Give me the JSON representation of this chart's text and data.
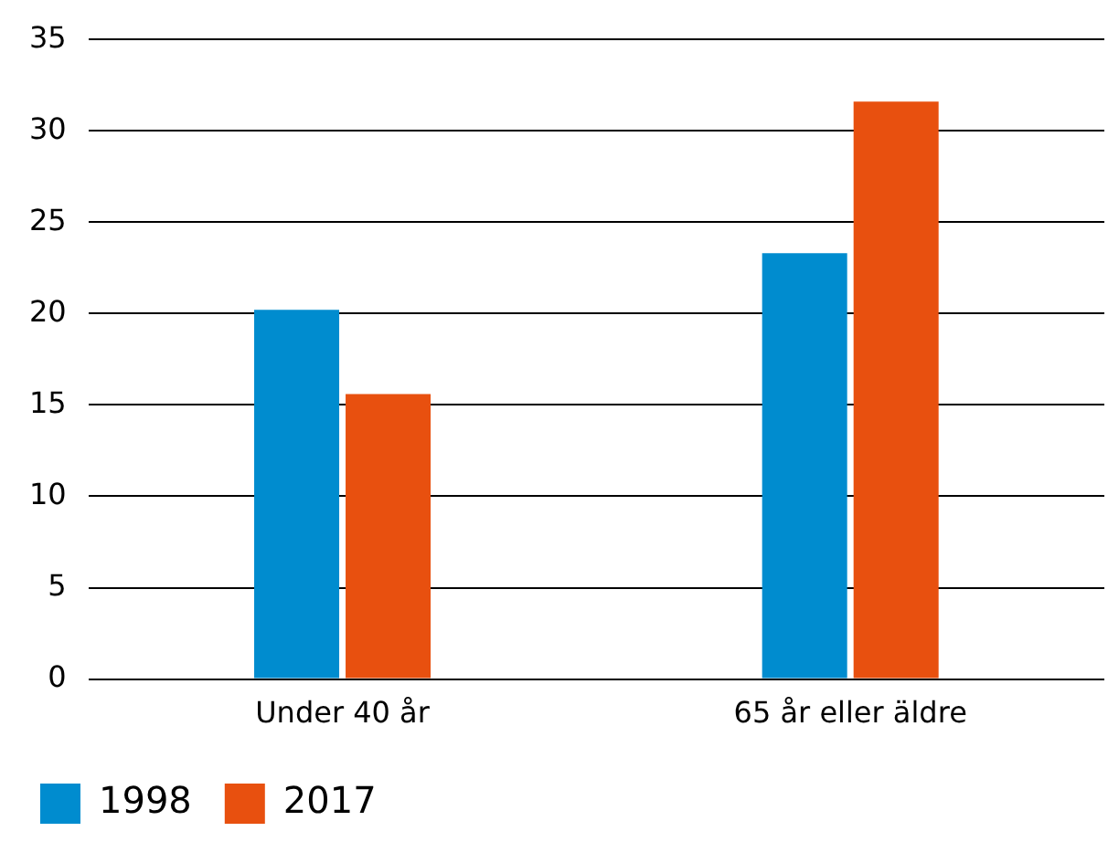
{
  "chart_data": {
    "type": "bar",
    "categories": [
      "Under 40 år",
      "65 år eller äldre"
    ],
    "series": [
      {
        "name": "1998",
        "color": "#008ccf",
        "values": [
          20.2,
          23.3
        ]
      },
      {
        "name": "2017",
        "color": "#e8500f",
        "values": [
          15.6,
          31.6
        ]
      }
    ],
    "ylim": [
      0,
      35
    ],
    "yticks": [
      0,
      5,
      10,
      15,
      20,
      25,
      30,
      35
    ],
    "grid": "y",
    "legend": "bottom left"
  }
}
